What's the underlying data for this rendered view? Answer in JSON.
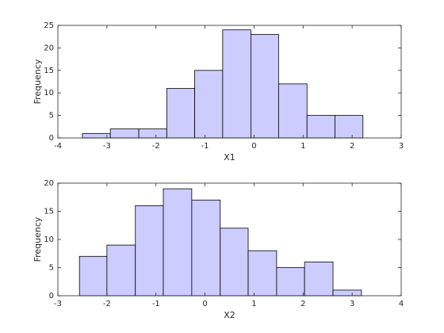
{
  "chart_data": [
    {
      "type": "histogram",
      "xlabel": "X1",
      "ylabel": "Frequency",
      "bins": [
        -3.5,
        -2.93,
        -2.35,
        -1.78,
        -1.21,
        -0.64,
        -0.065,
        0.5,
        1.08,
        1.65,
        2.22
      ],
      "values": [
        1,
        2,
        2,
        11,
        15,
        24,
        23,
        12,
        5,
        5
      ],
      "color": "#ccccff",
      "edgecolor": "#000000",
      "xlim": [
        -4,
        3
      ],
      "xticks": [
        -4,
        -3,
        -2,
        -1,
        0,
        1,
        2,
        3
      ],
      "ylim": [
        0,
        25
      ],
      "yticks": [
        0,
        5,
        10,
        15,
        20,
        25
      ]
    },
    {
      "type": "histogram",
      "xlabel": "X2",
      "ylabel": "Frequency",
      "bins": [
        -2.56,
        -2.0,
        -1.42,
        -0.85,
        -0.27,
        0.31,
        0.88,
        1.46,
        2.03,
        2.61,
        3.19
      ],
      "values": [
        7,
        9,
        16,
        19,
        17,
        12,
        8,
        5,
        6,
        1
      ],
      "color": "#ccccff",
      "edgecolor": "#000000",
      "xlim": [
        -3,
        4
      ],
      "xticks": [
        -3,
        -2,
        -1,
        0,
        1,
        2,
        3,
        4
      ],
      "ylim": [
        0,
        20
      ],
      "yticks": [
        0,
        5,
        10,
        15,
        20
      ]
    }
  ]
}
